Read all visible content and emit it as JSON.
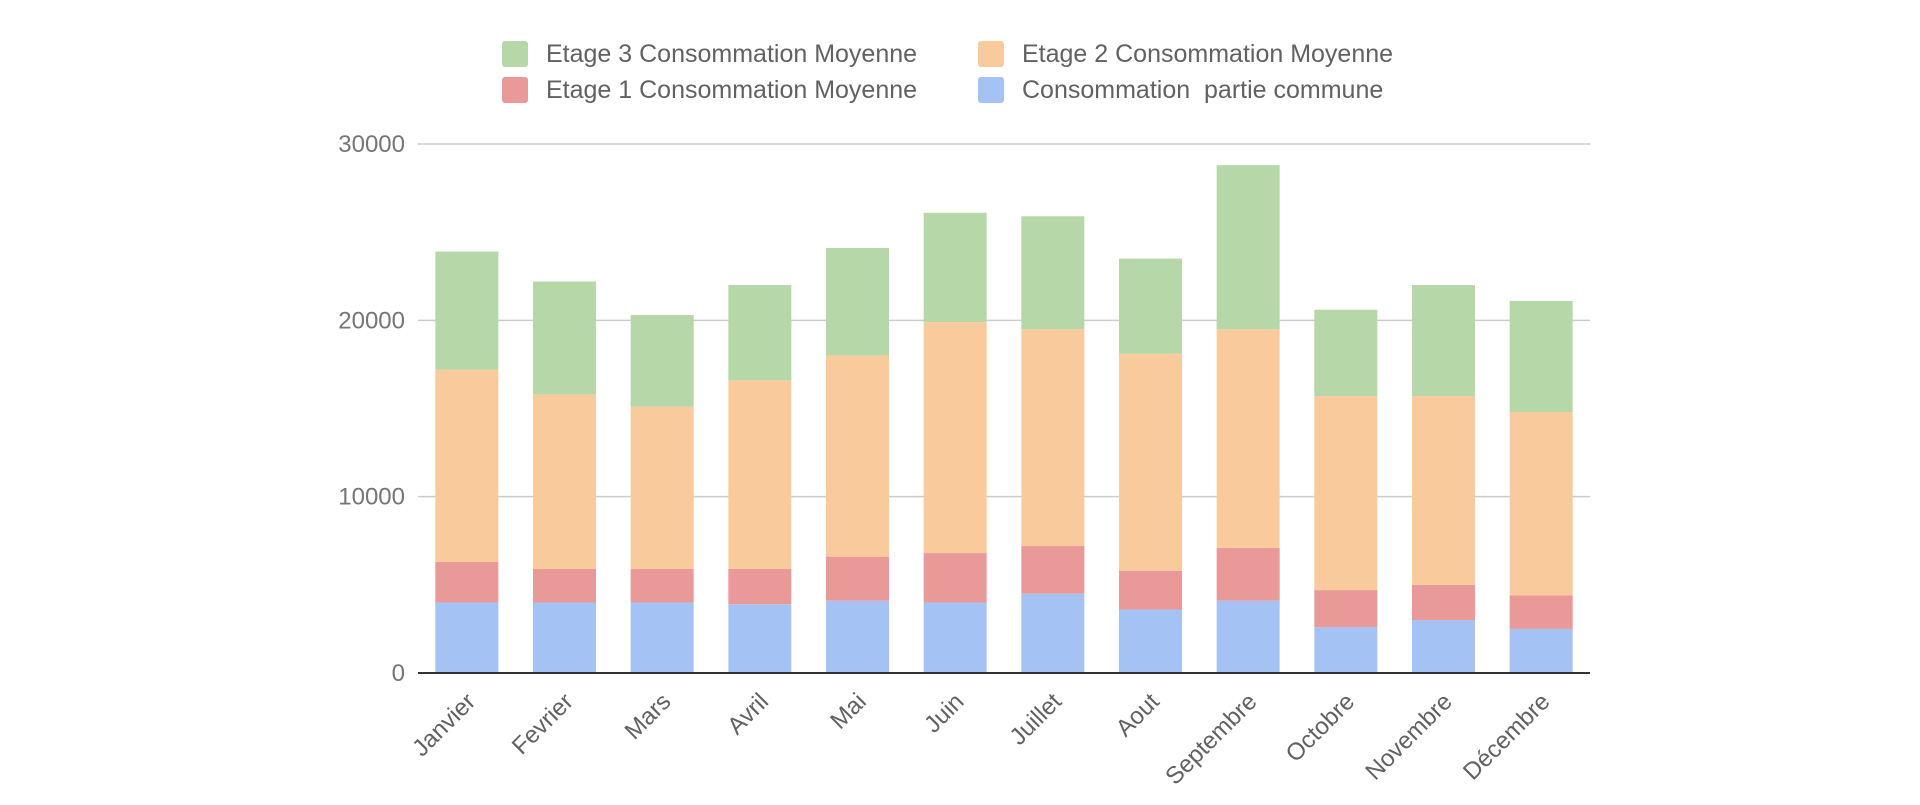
{
  "chart_data": {
    "type": "bar",
    "stacked": true,
    "title": "",
    "xlabel": "",
    "ylabel": "",
    "ylim": [
      0,
      30000
    ],
    "yticks": [
      0,
      10000,
      20000,
      30000
    ],
    "grid": true,
    "legend_position": "top",
    "categories": [
      "Janvier",
      "Fevrier",
      "Mars",
      "Avril",
      "Mai",
      "Juin",
      "Juillet",
      "Aout",
      "Septembre",
      "Octobre",
      "Novembre",
      "Décembre"
    ],
    "series": [
      {
        "name": "Consommation  partie commune",
        "color": "#a4c2f4",
        "values": [
          4000,
          4000,
          4000,
          3900,
          4100,
          4000,
          4500,
          3600,
          4100,
          2600,
          3000,
          2500
        ]
      },
      {
        "name": "Etage 1 Consommation Moyenne",
        "color": "#ea9999",
        "values": [
          2300,
          1900,
          1900,
          2000,
          2500,
          2800,
          2700,
          2200,
          3000,
          2100,
          2000,
          1900
        ]
      },
      {
        "name": "Etage 2 Consommation Moyenne",
        "color": "#f9cb9c",
        "values": [
          10900,
          9900,
          9200,
          10700,
          11400,
          13100,
          12300,
          12300,
          12400,
          11000,
          10700,
          10400
        ]
      },
      {
        "name": "Etage 3 Consommation Moyenne",
        "color": "#b6d7a8",
        "values": [
          6700,
          6400,
          5200,
          5400,
          6100,
          6200,
          6400,
          5400,
          9300,
          4900,
          6300,
          6300
        ]
      }
    ],
    "legend_order": [
      3,
      2,
      1,
      0
    ]
  }
}
